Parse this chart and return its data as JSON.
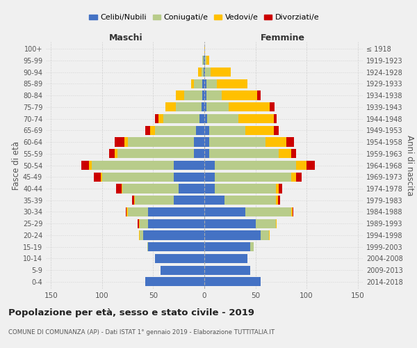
{
  "age_groups": [
    "0-4",
    "5-9",
    "10-14",
    "15-19",
    "20-24",
    "25-29",
    "30-34",
    "35-39",
    "40-44",
    "45-49",
    "50-54",
    "55-59",
    "60-64",
    "65-69",
    "70-74",
    "75-79",
    "80-84",
    "85-89",
    "90-94",
    "95-99",
    "100+"
  ],
  "birth_years": [
    "2014-2018",
    "2009-2013",
    "2004-2008",
    "1999-2003",
    "1994-1998",
    "1989-1993",
    "1984-1988",
    "1979-1983",
    "1974-1978",
    "1969-1973",
    "1964-1968",
    "1959-1963",
    "1954-1958",
    "1949-1953",
    "1944-1948",
    "1939-1943",
    "1934-1938",
    "1929-1933",
    "1924-1928",
    "1919-1923",
    "≤ 1918"
  ],
  "male": {
    "celibi": [
      58,
      43,
      48,
      55,
      60,
      55,
      55,
      30,
      25,
      30,
      30,
      10,
      10,
      8,
      5,
      3,
      2,
      2,
      1,
      1,
      0
    ],
    "coniugati": [
      0,
      0,
      0,
      1,
      3,
      8,
      20,
      38,
      55,
      70,
      80,
      75,
      65,
      40,
      35,
      25,
      18,
      8,
      2,
      1,
      0
    ],
    "vedovi": [
      0,
      0,
      0,
      0,
      1,
      1,
      1,
      1,
      1,
      1,
      3,
      3,
      3,
      5,
      5,
      10,
      8,
      3,
      3,
      0,
      0
    ],
    "divorziati": [
      0,
      0,
      0,
      0,
      0,
      1,
      1,
      2,
      5,
      7,
      7,
      5,
      10,
      5,
      3,
      0,
      0,
      0,
      0,
      0,
      0
    ]
  },
  "female": {
    "nubili": [
      55,
      45,
      42,
      45,
      55,
      50,
      40,
      20,
      10,
      10,
      10,
      5,
      5,
      5,
      3,
      2,
      2,
      2,
      1,
      1,
      0
    ],
    "coniugate": [
      0,
      0,
      0,
      3,
      8,
      20,
      45,
      50,
      60,
      75,
      80,
      68,
      55,
      35,
      30,
      22,
      15,
      10,
      5,
      1,
      0
    ],
    "vedove": [
      0,
      0,
      0,
      0,
      1,
      1,
      1,
      2,
      3,
      5,
      10,
      12,
      20,
      28,
      35,
      40,
      35,
      30,
      20,
      3,
      1
    ],
    "divorziate": [
      0,
      0,
      0,
      0,
      0,
      0,
      1,
      2,
      3,
      5,
      8,
      5,
      8,
      5,
      3,
      5,
      3,
      0,
      0,
      0,
      0
    ]
  },
  "colors": {
    "celibi": "#4472c4",
    "coniugati": "#b8cc8a",
    "vedovi": "#ffc000",
    "divorziati": "#cc0000"
  },
  "legend_labels": [
    "Celibi/Nubili",
    "Coniugati/e",
    "Vedovi/e",
    "Divorziati/e"
  ],
  "title": "Popolazione per età, sesso e stato civile - 2019",
  "subtitle": "COMUNE DI COMUNANZA (AP) - Dati ISTAT 1° gennaio 2019 - Elaborazione TUTTITALIA.IT",
  "xlabel_left": "Maschi",
  "xlabel_right": "Femmine",
  "ylabel_left": "Fasce di età",
  "ylabel_right": "Anni di nascita",
  "xlim": 155,
  "bg_color": "#f0f0f0",
  "grid_color": "#cccccc"
}
